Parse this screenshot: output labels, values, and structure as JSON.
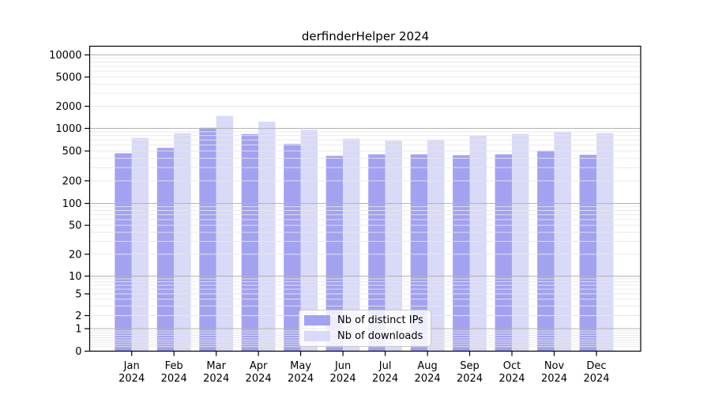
{
  "title": "derfinderHelper 2024",
  "year_label": "2024",
  "colors": {
    "distinct_ips_bar": "#a2a2f0",
    "downloads_bar": "#d9d9f8",
    "grid_major": "#b3b3b3",
    "grid_minor": "#e7e7e7",
    "axis": "#000000",
    "text": "#000000",
    "legend_border": "#c9c9c9",
    "background": "#ffffff"
  },
  "legend": {
    "items": [
      {
        "label": "Nb of distinct IPs",
        "swatch": "distinct-ips-swatch"
      },
      {
        "label": "Nb of downloads",
        "swatch": "downloads-swatch"
      }
    ]
  },
  "chart_data": {
    "type": "bar",
    "title": "derfinderHelper 2024",
    "xlabel": "",
    "ylabel": "",
    "categories": [
      "Jan",
      "Feb",
      "Mar",
      "Apr",
      "May",
      "Jun",
      "Jul",
      "Aug",
      "Sep",
      "Oct",
      "Nov",
      "Dec"
    ],
    "year_label": "2024",
    "series": [
      {
        "name": "Nb of distinct IPs",
        "color": "#a2a2f0",
        "values": [
          465,
          550,
          1020,
          840,
          620,
          430,
          450,
          450,
          440,
          450,
          505,
          445
        ]
      },
      {
        "name": "Nb of downloads",
        "color": "#d9d9f8",
        "values": [
          745,
          860,
          1480,
          1230,
          960,
          730,
          685,
          705,
          810,
          845,
          895,
          865
        ]
      }
    ],
    "yscale": "symlog",
    "y_ticks": [
      0,
      1,
      2,
      5,
      10,
      20,
      50,
      100,
      200,
      500,
      1000,
      2000,
      5000,
      10000
    ],
    "ylim": [
      0,
      13000
    ],
    "grid": true,
    "grid_minor": true,
    "legend_position": "bottom-center",
    "bar_grouping": "paired-per-month"
  }
}
